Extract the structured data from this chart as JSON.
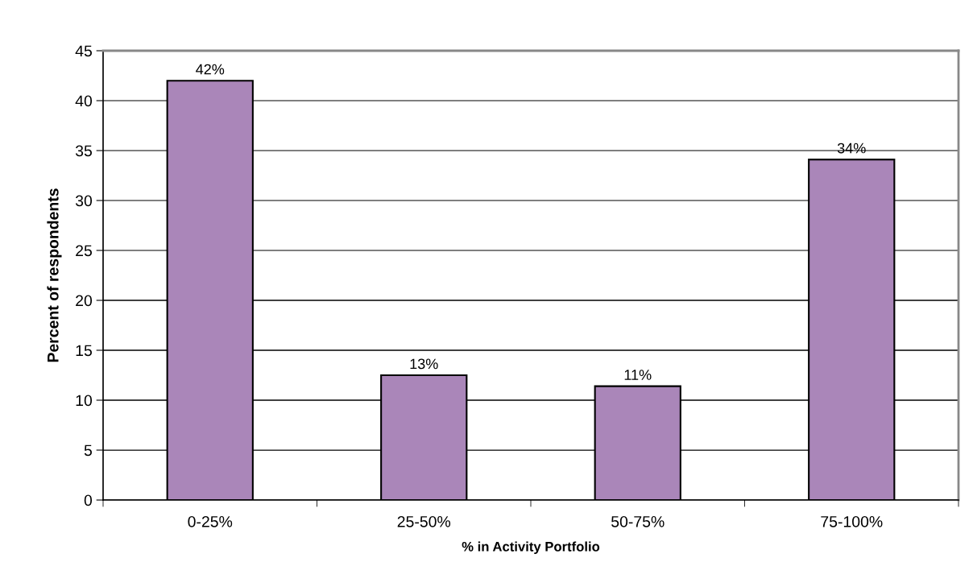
{
  "chart_data": {
    "type": "bar",
    "xlabel": "% in Activity Portfolio",
    "ylabel": "Percent of respondents",
    "categories": [
      "0-25%",
      "25-50%",
      "50-75%",
      "75-100%"
    ],
    "values": [
      42,
      12.5,
      11.4,
      34.1
    ],
    "value_labels": [
      "42%",
      "13%",
      "11%",
      "34%"
    ],
    "color": "#aa86b9",
    "ylim": [
      0,
      45
    ],
    "yticks": [
      0,
      5,
      10,
      15,
      20,
      25,
      30,
      35,
      40,
      45
    ],
    "grid": "y"
  }
}
